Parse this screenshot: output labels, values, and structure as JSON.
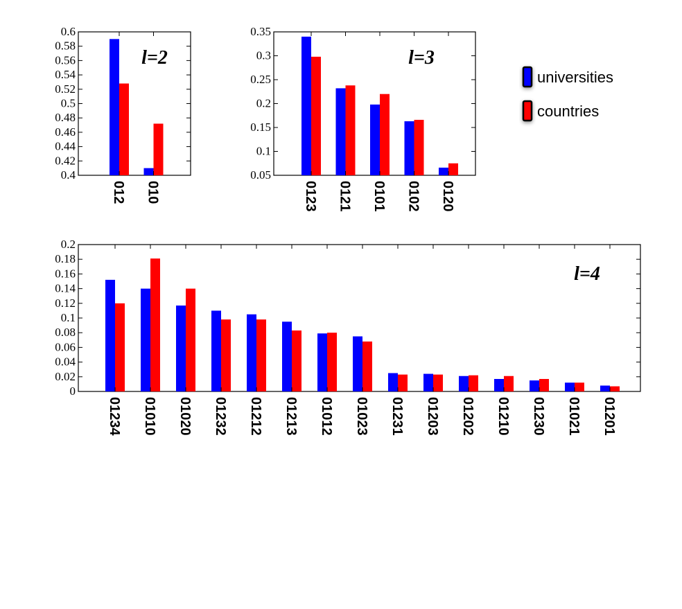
{
  "legend": {
    "position": "top-right",
    "items": [
      {
        "name": "universities",
        "color": "#0000ff"
      },
      {
        "name": "countries",
        "color": "#ff0000"
      }
    ]
  },
  "chart_data": [
    {
      "type": "bar",
      "annotation": "l=2",
      "categories": [
        "012",
        "010"
      ],
      "series": [
        {
          "name": "universities",
          "color": "#0000ff",
          "values": [
            0.59,
            0.41
          ]
        },
        {
          "name": "countries",
          "color": "#ff0000",
          "values": [
            0.528,
            0.472
          ]
        }
      ],
      "ylim": [
        0.4,
        0.6
      ],
      "yticks": [
        0.4,
        0.42,
        0.44,
        0.46,
        0.48,
        0.5,
        0.52,
        0.54,
        0.56,
        0.58,
        0.6
      ],
      "ytick_labels": [
        "0.4",
        "0.42",
        "0.44",
        "0.46",
        "0.48",
        "0.5",
        "0.52",
        "0.54",
        "0.56",
        "0.58",
        "0.6"
      ],
      "grid": false
    },
    {
      "type": "bar",
      "annotation": "l=3",
      "categories": [
        "0123",
        "0121",
        "0101",
        "0102",
        "0120"
      ],
      "series": [
        {
          "name": "universities",
          "color": "#0000ff",
          "values": [
            0.34,
            0.232,
            0.198,
            0.163,
            0.066
          ]
        },
        {
          "name": "countries",
          "color": "#ff0000",
          "values": [
            0.298,
            0.238,
            0.22,
            0.166,
            0.075
          ]
        }
      ],
      "ylim": [
        0.05,
        0.35
      ],
      "yticks": [
        0.05,
        0.1,
        0.15,
        0.2,
        0.25,
        0.3,
        0.35
      ],
      "ytick_labels": [
        "0.05",
        "0.1",
        "0.15",
        "0.2",
        "0.25",
        "0.3",
        "0.35"
      ],
      "grid": false
    },
    {
      "type": "bar",
      "annotation": "l=4",
      "categories": [
        "01234",
        "01010",
        "01020",
        "01232",
        "01212",
        "01213",
        "01012",
        "01023",
        "01231",
        "01203",
        "01202",
        "01210",
        "01230",
        "01021",
        "01201"
      ],
      "series": [
        {
          "name": "universities",
          "color": "#0000ff",
          "values": [
            0.152,
            0.14,
            0.117,
            0.11,
            0.105,
            0.095,
            0.079,
            0.075,
            0.025,
            0.024,
            0.021,
            0.017,
            0.015,
            0.012,
            0.008
          ]
        },
        {
          "name": "countries",
          "color": "#ff0000",
          "values": [
            0.12,
            0.181,
            0.14,
            0.098,
            0.098,
            0.083,
            0.08,
            0.068,
            0.023,
            0.023,
            0.022,
            0.021,
            0.017,
            0.012,
            0.007
          ]
        }
      ],
      "ylim": [
        0,
        0.2
      ],
      "yticks": [
        0,
        0.02,
        0.04,
        0.06,
        0.08,
        0.1,
        0.12,
        0.14,
        0.16,
        0.18,
        0.2
      ],
      "ytick_labels": [
        "0",
        "0.02",
        "0.04",
        "0.06",
        "0.08",
        "0.1",
        "0.12",
        "0.14",
        "0.16",
        "0.18",
        "0.2"
      ],
      "grid": false
    }
  ]
}
